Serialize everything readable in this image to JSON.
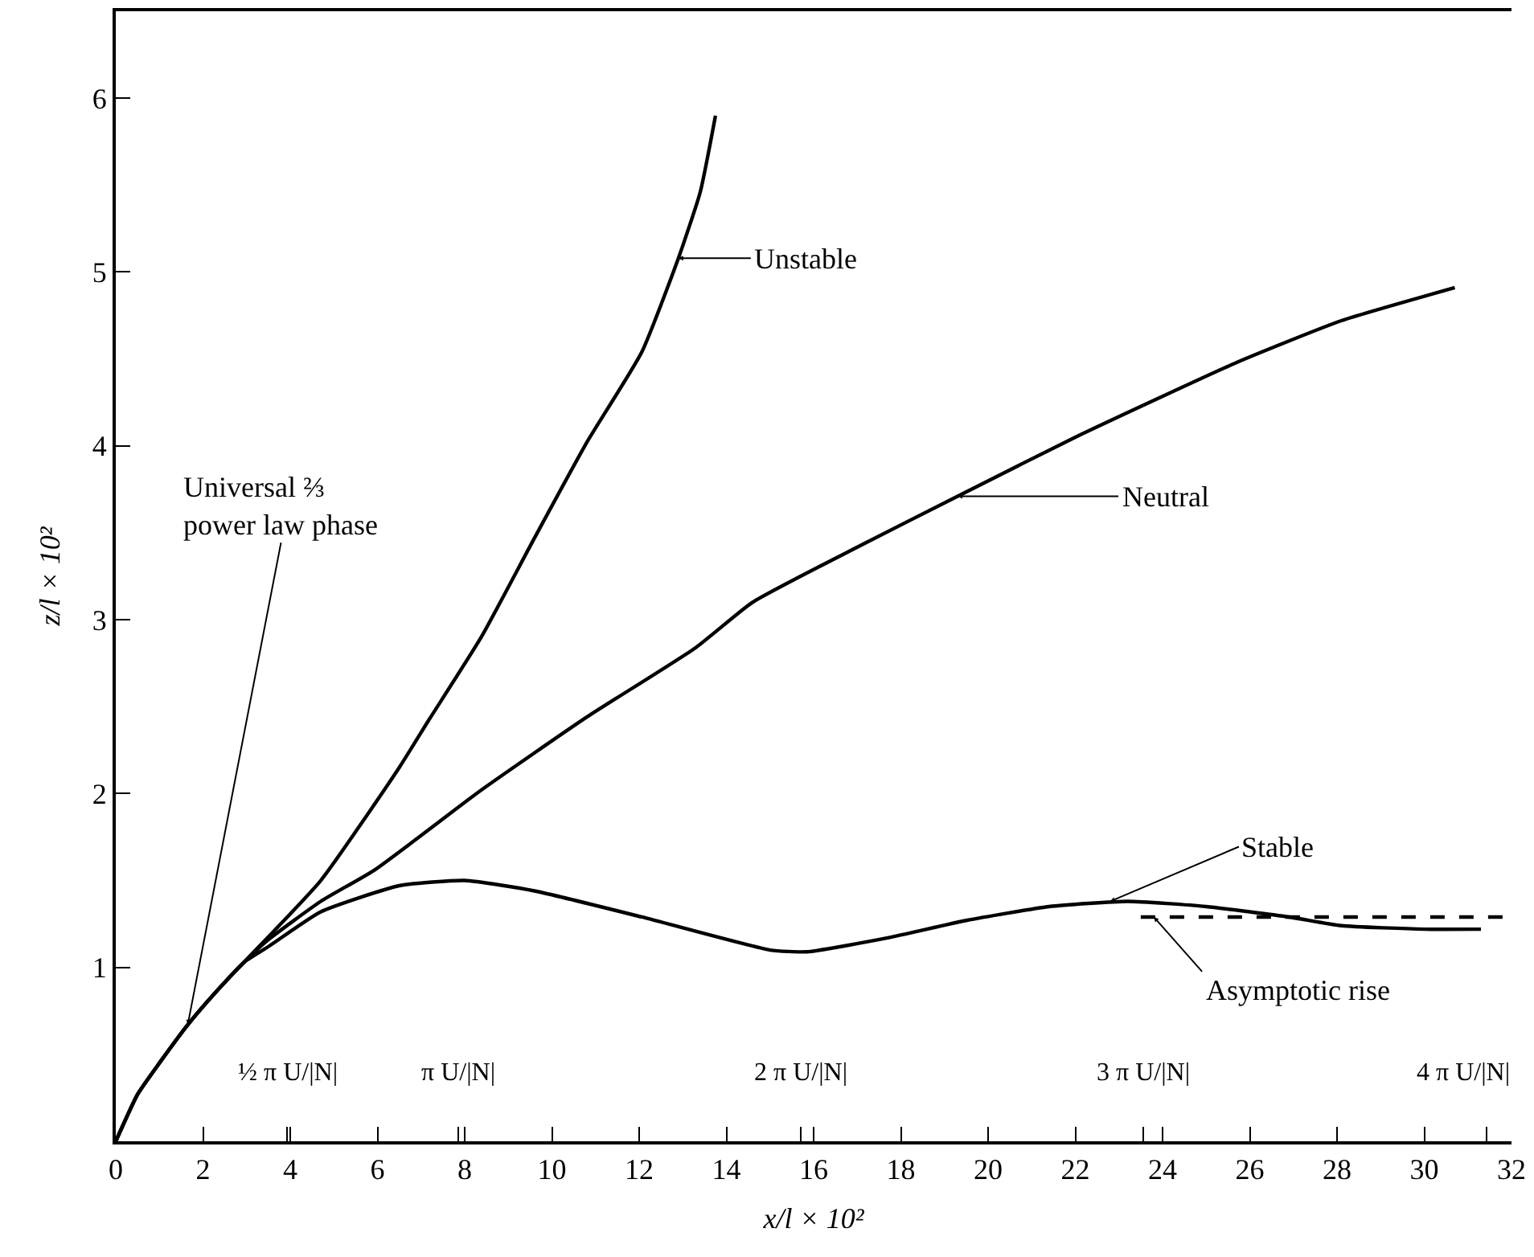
{
  "chart_data": {
    "type": "line",
    "xlabel": "x/l × 10²",
    "ylabel": "z/l × 10²",
    "xlim": [
      0,
      32
    ],
    "ylim": [
      0,
      6.5
    ],
    "xticks": [
      0,
      2,
      {
        "value": 3.93,
        "label": null
      },
      4,
      6,
      {
        "value": 7.85,
        "label": null
      },
      8,
      10,
      12,
      14,
      {
        "value": 15.71,
        "label": null
      },
      16,
      18,
      20,
      22,
      {
        "value": 23.56,
        "label": null
      },
      24,
      26,
      28,
      30,
      {
        "value": 31.42,
        "label": null
      },
      32
    ],
    "yticks": [
      1,
      2,
      3,
      4,
      5,
      6
    ],
    "marker": "none",
    "series": [
      {
        "color": "#000000",
        "x": [
          0,
          0.5,
          1,
          1.65,
          2.3,
          2.94,
          4.7,
          6.5,
          7.17,
          8.38,
          9.6,
          10.8,
          12.06,
          12.9,
          13.4,
          13.75
        ],
        "values": [
          0,
          0.27,
          0.45,
          0.67,
          0.86,
          1.03,
          1.5,
          2.15,
          2.42,
          2.9,
          3.47,
          4.02,
          4.54,
          5.08,
          5.46,
          5.9
        ]
      },
      {
        "color": "#000000",
        "x": [
          0,
          0.5,
          1,
          1.65,
          2.3,
          2.94,
          3.5,
          4.7,
          5.93,
          8.38,
          10.8,
          13.3,
          14.6,
          17.1,
          19.3,
          22.0,
          25.7,
          28.1,
          30.7
        ],
        "values": [
          0,
          0.27,
          0.45,
          0.67,
          0.86,
          1.03,
          1.16,
          1.38,
          1.56,
          2.02,
          2.44,
          2.84,
          3.1,
          3.43,
          3.71,
          4.05,
          4.48,
          4.72,
          4.91
        ]
      },
      {
        "color": "#000000",
        "x": [
          0,
          0.5,
          1,
          1.65,
          2.3,
          2.94,
          3.5,
          4.7,
          6.5,
          8.0,
          9.6,
          12.06,
          15.0,
          15.85,
          17.7,
          19.5,
          21.4,
          23.2,
          25.0,
          26.9,
          28.1,
          30.0,
          31.3
        ],
        "values": [
          0,
          0.27,
          0.45,
          0.67,
          0.86,
          1.03,
          1.12,
          1.32,
          1.47,
          1.5,
          1.44,
          1.29,
          1.1,
          1.09,
          1.17,
          1.27,
          1.35,
          1.38,
          1.35,
          1.29,
          1.24,
          1.22,
          1.22
        ]
      },
      {
        "color": "#000000",
        "line_style": "dashed",
        "x": [
          23.5,
          32
        ],
        "values": [
          1.29,
          1.29
        ]
      }
    ],
    "annotations": [
      {
        "text": "Universal ⅔\npower law phase",
        "x": 1.65,
        "y": 0.67
      },
      {
        "text": "Unstable",
        "x": 12.9,
        "y": 5.08
      },
      {
        "text": "Neutral",
        "x": 19.3,
        "y": 3.71
      },
      {
        "text": "Stable",
        "x": 22.8,
        "y": 1.38
      },
      {
        "text": "Asymptotic rise",
        "x": 23.8,
        "y": 1.29
      },
      "½ π U/|N|",
      "π U/|N|",
      "2 π U/|N|",
      "3 π U/|N|",
      "4 π U/|N|"
    ]
  }
}
